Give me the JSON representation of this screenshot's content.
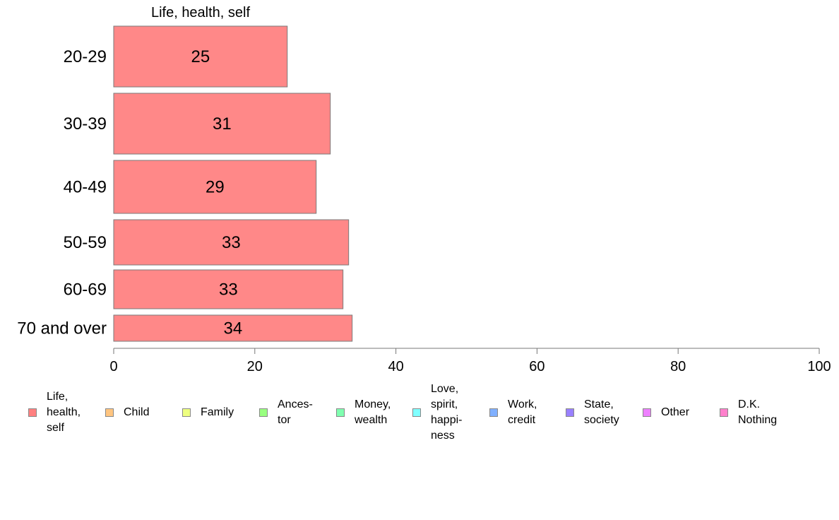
{
  "chart_data": {
    "type": "bar",
    "orientation": "horizontal",
    "title": "Life, health, self",
    "categories": [
      "20-29",
      "30-39",
      "40-49",
      "50-59",
      "60-69",
      "70 and over"
    ],
    "values": [
      24.6,
      30.7,
      28.7,
      33.3,
      32.5,
      33.8
    ],
    "data_labels": [
      "25",
      "31",
      "29",
      "33",
      "33",
      "34"
    ],
    "xlim": [
      0,
      100
    ],
    "xticks": [
      "0",
      "20",
      "40",
      "60",
      "80",
      "100"
    ],
    "xlabel": "",
    "ylabel": "",
    "grid": false,
    "bar_color": "#ff8888",
    "bar_stroke": "#7a7a7a",
    "legend": {
      "placement": "bottom",
      "items": [
        {
          "label": "Life,\nhealth,\nself",
          "color": "#ff8080"
        },
        {
          "label": "Child",
          "color": "#ffc580"
        },
        {
          "label": "Family",
          "color": "#eeff80"
        },
        {
          "label": "Ances-\ntor",
          "color": "#99ff80"
        },
        {
          "label": "Money,\nwealth",
          "color": "#80ffb0"
        },
        {
          "label": "Love,\nspirit,\nhappi-\nness",
          "color": "#80ffff"
        },
        {
          "label": "Work,\ncredit",
          "color": "#80b0ff"
        },
        {
          "label": "State,\nsociety",
          "color": "#9980ff"
        },
        {
          "label": "Other",
          "color": "#ee80ff"
        },
        {
          "label": "D.K.\nNothing",
          "color": "#ff80cc"
        }
      ]
    }
  }
}
